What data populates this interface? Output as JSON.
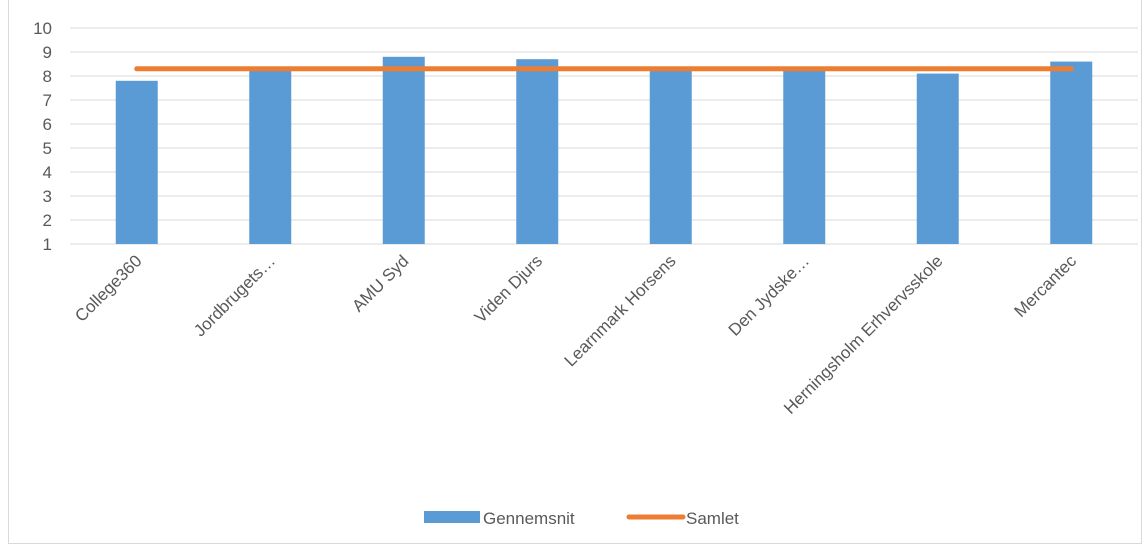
{
  "chart_data": {
    "type": "bar",
    "categories": [
      "College360",
      "Jordbrugets…",
      "AMU Syd",
      "Viden Djurs",
      "Learnmark Horsens",
      "Den Jydske…",
      "Herningsholm Erhvervsskole",
      "Mercantec"
    ],
    "series": [
      {
        "name": "Gennemsnit",
        "type": "bar",
        "color": "#5b9bd5",
        "values": [
          7.8,
          8.3,
          8.8,
          8.7,
          8.3,
          8.3,
          8.1,
          8.6
        ]
      },
      {
        "name": "Samlet",
        "type": "line",
        "color": "#ed7d31",
        "values": [
          8.3,
          8.3,
          8.3,
          8.3,
          8.3,
          8.3,
          8.3,
          8.3
        ]
      }
    ],
    "yticks": [
      "1",
      "2",
      "3",
      "4",
      "5",
      "6",
      "7",
      "8",
      "9",
      "10"
    ],
    "ylim": [
      1,
      10
    ],
    "grid": true,
    "legend_position": "bottom",
    "title": "",
    "xlabel": "",
    "ylabel": ""
  }
}
